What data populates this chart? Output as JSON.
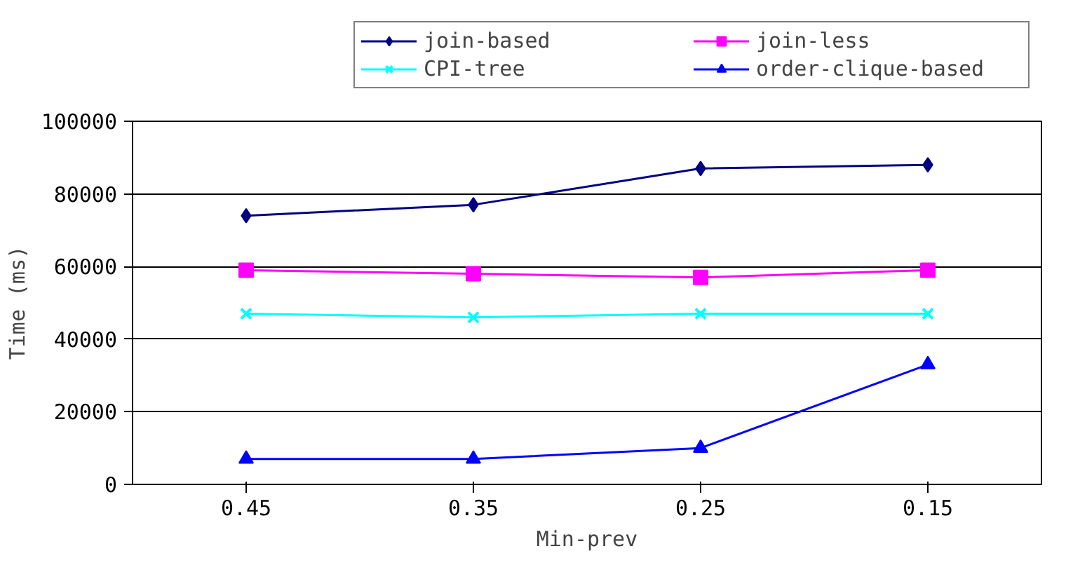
{
  "chart_data": {
    "type": "line",
    "xlabel": "Min-prev",
    "ylabel": "Time (ms)",
    "categories": [
      "0.45",
      "0.35",
      "0.25",
      "0.15"
    ],
    "ylim": [
      0,
      100000
    ],
    "yticks": [
      0,
      20000,
      40000,
      60000,
      80000,
      100000
    ],
    "grid": "y",
    "legend": "top",
    "series": [
      {
        "name": "join-based",
        "color": "#000080",
        "marker": "diamond",
        "values": [
          74000,
          77000,
          87000,
          88000
        ]
      },
      {
        "name": "join-less",
        "color": "#ff00ff",
        "marker": "square",
        "values": [
          59000,
          58000,
          57000,
          59000
        ]
      },
      {
        "name": "CPI-tree",
        "color": "#00ffff",
        "marker": "cross",
        "values": [
          47000,
          46000,
          47000,
          47000
        ]
      },
      {
        "name": "order-clique-based",
        "color": "#0000ff",
        "marker": "triangle",
        "values": [
          7000,
          7000,
          10000,
          33000
        ]
      }
    ]
  }
}
